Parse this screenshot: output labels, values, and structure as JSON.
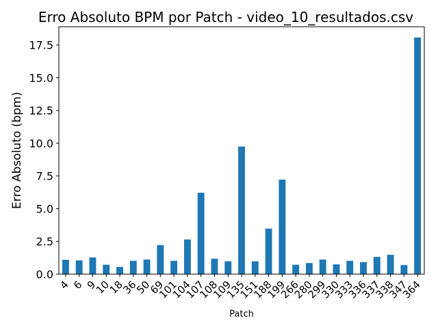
{
  "chart_data": {
    "type": "bar",
    "title": "Erro Absoluto BPM por Patch - video_10_resultados.csv",
    "xlabel": "Patch",
    "ylabel": "Erro Absoluto (bpm)",
    "categories": [
      "4",
      "6",
      "9",
      "10",
      "18",
      "36",
      "50",
      "69",
      "101",
      "104",
      "107",
      "108",
      "109",
      "135",
      "151",
      "188",
      "199",
      "266",
      "280",
      "299",
      "330",
      "333",
      "336",
      "337",
      "338",
      "347",
      "364"
    ],
    "values": [
      1.1,
      1.05,
      1.28,
      0.72,
      0.55,
      1.02,
      1.12,
      2.22,
      1.02,
      2.65,
      6.22,
      1.18,
      0.98,
      9.75,
      0.98,
      3.48,
      7.22,
      0.72,
      0.85,
      1.12,
      0.75,
      1.02,
      0.92,
      1.32,
      1.48,
      0.7,
      18.08
    ],
    "yticks": [
      0.0,
      2.5,
      5.0,
      7.5,
      10.0,
      12.5,
      15.0,
      17.5
    ],
    "ylim": [
      0,
      18.9
    ],
    "bar_color": "#1f77b4",
    "grid": false,
    "legend": "none"
  }
}
